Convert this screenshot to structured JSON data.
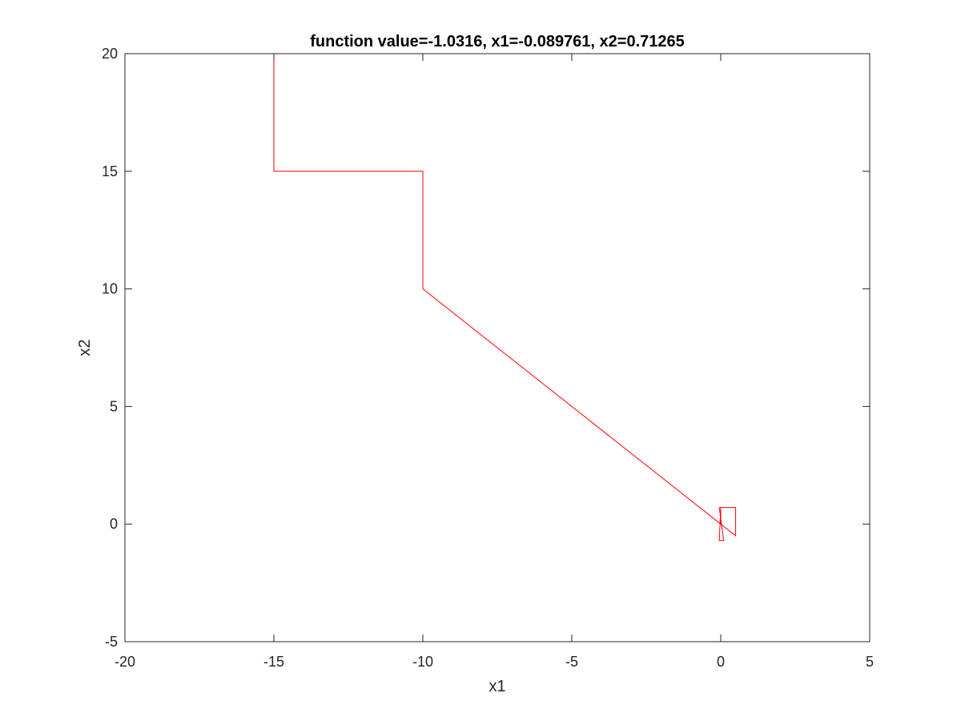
{
  "chart_data": {
    "type": "line",
    "title": "function value=-1.0316, x1=-0.089761, x2=0.71265",
    "xlabel": "x1",
    "ylabel": "x2",
    "xlim": [
      -20,
      5
    ],
    "ylim": [
      -5,
      20
    ],
    "xticks": [
      -20,
      -15,
      -10,
      -5,
      0,
      5
    ],
    "yticks": [
      -5,
      0,
      5,
      10,
      15,
      20
    ],
    "xtick_labels": [
      "-20",
      "-15",
      "-10",
      "-5",
      "0",
      "5"
    ],
    "ytick_labels": [
      "-5",
      "0",
      "5",
      "10",
      "15",
      "20"
    ],
    "grid": false,
    "colors": {
      "series": "#ff0000",
      "axes": "#262626",
      "background": "#ffffff"
    },
    "series": [
      {
        "x": [
          -20,
          -15,
          -15,
          -15,
          -10,
          -10,
          -10,
          0,
          0.5,
          0.5,
          -0.05,
          0.1,
          -0.05,
          0,
          0
        ],
        "y": [
          20,
          20,
          19.7,
          15,
          15,
          15,
          10,
          0,
          -0.5,
          0.7,
          0.7,
          -0.7,
          -0.7,
          0.7,
          0
        ]
      }
    ]
  }
}
